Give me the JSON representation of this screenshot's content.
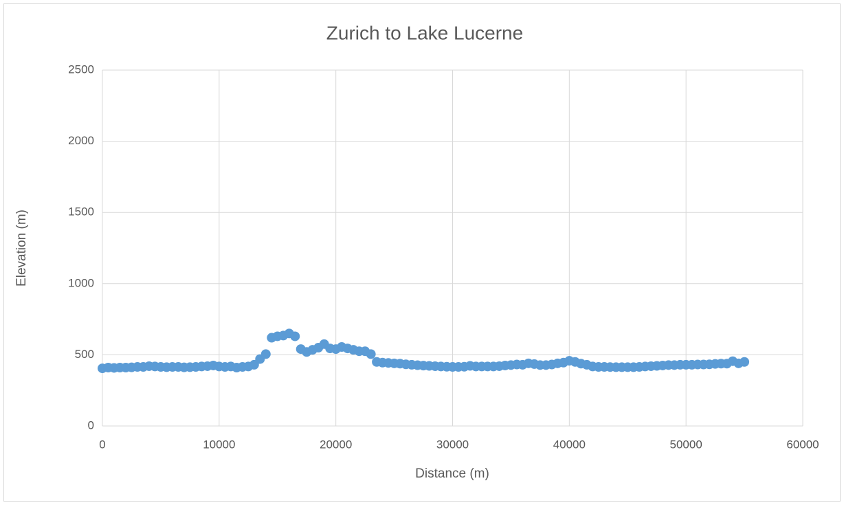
{
  "chart_data": {
    "type": "scatter",
    "title": "Zurich to Lake Lucerne",
    "x_label": "Distance (m)",
    "y_label": "Elevation (m)",
    "x": [
      0,
      500,
      1000,
      1500,
      2000,
      2500,
      3000,
      3500,
      4000,
      4500,
      5000,
      5500,
      6000,
      6500,
      7000,
      7500,
      8000,
      8500,
      9000,
      9500,
      10000,
      10500,
      11000,
      11500,
      12000,
      12500,
      13000,
      13500,
      14000,
      14500,
      15000,
      15500,
      16000,
      16500,
      17000,
      17500,
      18000,
      18500,
      19000,
      19500,
      20000,
      20500,
      21000,
      21500,
      22000,
      22500,
      23000,
      23500,
      24000,
      24500,
      25000,
      25500,
      26000,
      26500,
      27000,
      27500,
      28000,
      28500,
      29000,
      29500,
      30000,
      30500,
      31000,
      31500,
      32000,
      32500,
      33000,
      33500,
      34000,
      34500,
      35000,
      35500,
      36000,
      36500,
      37000,
      37500,
      38000,
      38500,
      39000,
      39500,
      40000,
      40500,
      41000,
      41500,
      42000,
      42500,
      43000,
      43500,
      44000,
      44500,
      45000,
      45500,
      46000,
      46500,
      47000,
      47500,
      48000,
      48500,
      49000,
      49500,
      50000,
      50500,
      51000,
      51500,
      52000,
      52500,
      53000,
      53500,
      54000,
      54500,
      55000
    ],
    "values": [
      405,
      410,
      408,
      410,
      410,
      412,
      415,
      415,
      420,
      418,
      415,
      413,
      415,
      415,
      412,
      413,
      415,
      418,
      420,
      425,
      418,
      415,
      418,
      410,
      415,
      418,
      430,
      470,
      505,
      620,
      630,
      635,
      650,
      630,
      540,
      520,
      535,
      550,
      575,
      545,
      540,
      555,
      545,
      535,
      525,
      525,
      505,
      450,
      445,
      443,
      440,
      438,
      433,
      430,
      427,
      424,
      422,
      420,
      418,
      416,
      415,
      415,
      416,
      422,
      418,
      418,
      418,
      418,
      420,
      425,
      428,
      432,
      430,
      440,
      435,
      428,
      428,
      432,
      440,
      445,
      458,
      450,
      438,
      430,
      418,
      415,
      415,
      414,
      413,
      413,
      413,
      413,
      415,
      418,
      420,
      422,
      425,
      428,
      428,
      430,
      430,
      430,
      432,
      432,
      433,
      436,
      438,
      438,
      455,
      440,
      450
    ],
    "color": "#5b9bd5",
    "xlim": [
      0,
      60000
    ],
    "xticks": [
      0,
      10000,
      20000,
      30000,
      40000,
      50000,
      60000
    ],
    "ylim": [
      0,
      2500
    ],
    "yticks": [
      0,
      500,
      1000,
      1500,
      2000,
      2500
    ],
    "grid": true
  }
}
